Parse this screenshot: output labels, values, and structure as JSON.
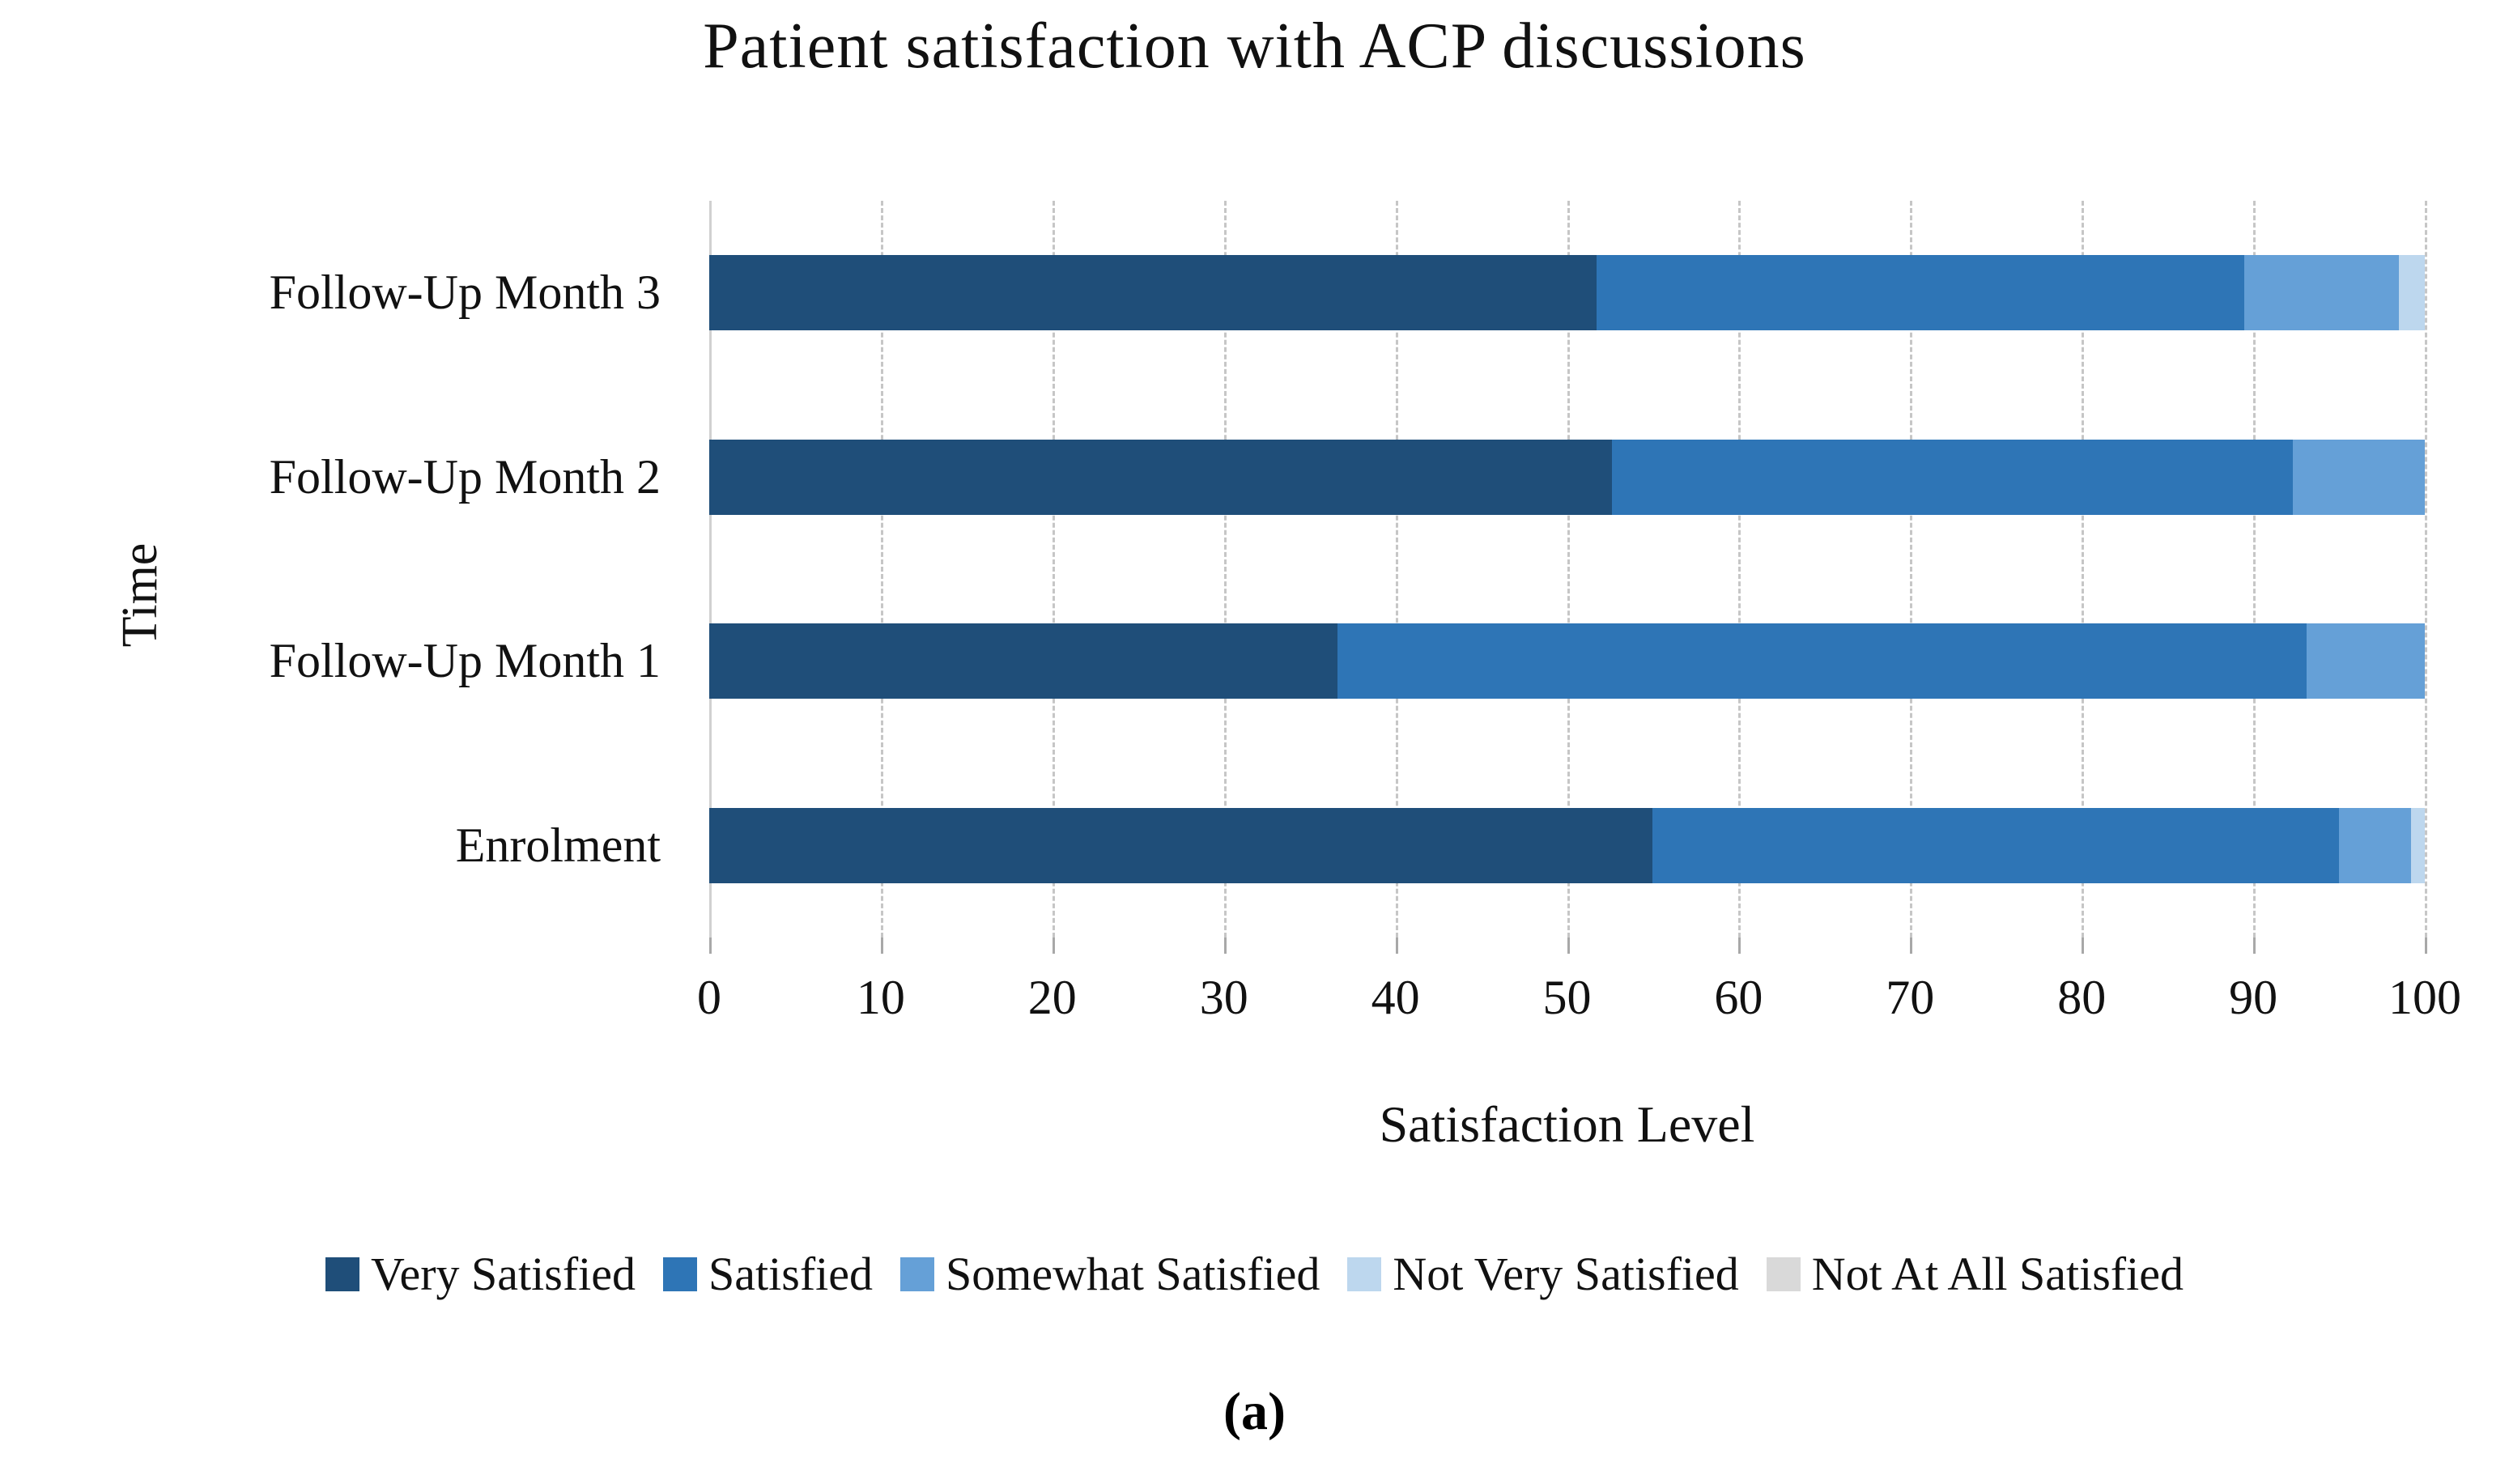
{
  "chart_data": {
    "type": "bar",
    "orientation": "horizontal",
    "stacked": true,
    "title": "Patient satisfaction with ACP discussions",
    "xlabel": "Satisfaction Level",
    "ylabel": "Time",
    "xlim": [
      0,
      100
    ],
    "xticks": [
      0,
      10,
      20,
      30,
      40,
      50,
      60,
      70,
      80,
      90,
      100
    ],
    "grid": "vertical-dashed",
    "legend_position": "bottom",
    "categories": [
      "Follow-Up Month 3",
      "Follow-Up Month 2",
      "Follow-Up Month 1",
      "Enrolment"
    ],
    "series": [
      {
        "name": "Very Satisfied",
        "color": "#1F4E79",
        "values": [
          51.7,
          52.6,
          36.6,
          55.0
        ]
      },
      {
        "name": "Satisfied",
        "color": "#2E75B6",
        "values": [
          37.8,
          39.7,
          56.5,
          40.0
        ]
      },
      {
        "name": "Somewhat Satisfied",
        "color": "#65A0D7",
        "values": [
          9.0,
          7.7,
          6.9,
          4.2
        ]
      },
      {
        "name": "Not Very Satisfied",
        "color": "#BDD7EE",
        "values": [
          1.5,
          0,
          0,
          0.8
        ]
      },
      {
        "name": "Not At All Satisfied",
        "color": "#D9D9D9",
        "values": [
          0,
          0,
          0,
          0
        ]
      }
    ],
    "caption": "(a)"
  }
}
